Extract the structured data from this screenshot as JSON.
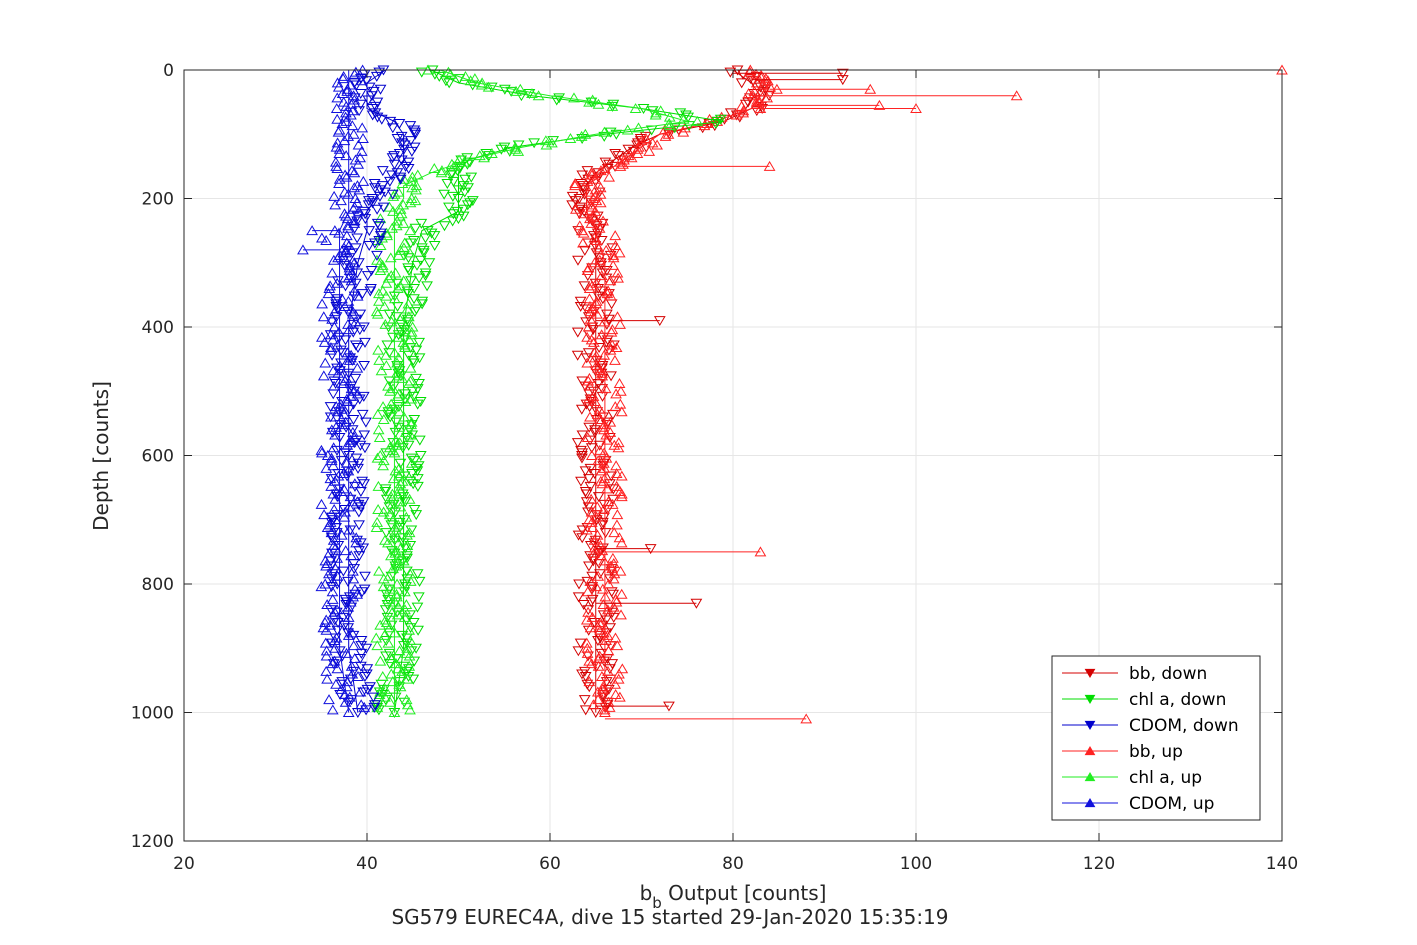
{
  "chart_data": {
    "type": "scatter",
    "title": "",
    "xlabel_main": "b",
    "xlabel_sub": "b",
    "xlabel_rest": " Output [counts]",
    "ylabel": "Depth [counts]",
    "footer": "SG579 EUREC4A, dive 15 started 29-Jan-2020 15:35:19",
    "xlim": [
      20,
      140
    ],
    "ylim": [
      0,
      1200
    ],
    "y_reversed": true,
    "grid": true,
    "legend_position": "bottom-right",
    "xticks": [
      "20",
      "40",
      "60",
      "80",
      "100",
      "120",
      "140"
    ],
    "yticks": [
      "0",
      "200",
      "400",
      "600",
      "800",
      "1000",
      "1200"
    ],
    "series": [
      {
        "name": "bb, down",
        "color": "#d40000",
        "marker": "triangle-down",
        "depth": [
          0,
          20,
          40,
          60,
          80,
          100,
          120,
          140,
          160,
          180,
          200,
          220,
          250,
          300,
          400,
          500,
          600,
          700,
          800,
          900,
          1000
        ],
        "x": [
          80,
          82,
          83,
          82,
          79,
          72,
          69,
          67,
          65,
          64,
          64,
          64,
          65,
          65,
          65,
          65,
          65,
          65,
          65,
          65,
          65
        ]
      },
      {
        "name": "chl a, down",
        "color": "#00dd00",
        "marker": "triangle-down",
        "depth": [
          0,
          20,
          40,
          60,
          80,
          100,
          120,
          140,
          160,
          180,
          200,
          220,
          250,
          300,
          400,
          500,
          600,
          700,
          800,
          900,
          1000
        ],
        "x": [
          47,
          50,
          58,
          70,
          79,
          66,
          56,
          51,
          50,
          50,
          50,
          50,
          46,
          45,
          44,
          44,
          44,
          44,
          44,
          44,
          43
        ]
      },
      {
        "name": "CDOM, down",
        "color": "#0000cc",
        "marker": "triangle-down",
        "depth": [
          0,
          20,
          40,
          60,
          80,
          100,
          120,
          140,
          160,
          180,
          200,
          220,
          250,
          300,
          400,
          500,
          600,
          700,
          800,
          900,
          1000
        ],
        "x": [
          42,
          40,
          40,
          40,
          43,
          44,
          44,
          44,
          43,
          42,
          41,
          40,
          40,
          39,
          38,
          38,
          38,
          38,
          38,
          38,
          39
        ]
      },
      {
        "name": "bb, up",
        "color": "#ff2222",
        "marker": "triangle-up",
        "depth": [
          0,
          20,
          40,
          60,
          80,
          100,
          120,
          140,
          160,
          180,
          200,
          220,
          250,
          300,
          400,
          500,
          600,
          700,
          800,
          900,
          1000
        ],
        "x": [
          83,
          84,
          83,
          82,
          78,
          72,
          70,
          68,
          66,
          64,
          64,
          64,
          65,
          66,
          66,
          66,
          66,
          66,
          66,
          66,
          66
        ]
      },
      {
        "name": "chl a, up",
        "color": "#22ee22",
        "marker": "triangle-up",
        "depth": [
          0,
          20,
          40,
          60,
          80,
          100,
          120,
          140,
          160,
          180,
          200,
          220,
          250,
          300,
          400,
          500,
          600,
          700,
          800,
          900,
          1000
        ],
        "x": [
          48,
          52,
          60,
          70,
          75,
          65,
          57,
          51,
          47,
          44,
          44,
          43,
          43,
          43,
          43,
          43,
          43,
          43,
          43,
          43,
          43
        ]
      },
      {
        "name": "CDOM, up",
        "color": "#1111dd",
        "marker": "triangle-up",
        "depth": [
          0,
          20,
          40,
          60,
          80,
          100,
          120,
          140,
          160,
          180,
          200,
          220,
          250,
          300,
          400,
          500,
          600,
          700,
          800,
          900,
          1000
        ],
        "x": [
          38,
          38,
          38,
          38,
          38,
          38,
          38,
          38,
          38,
          38,
          38,
          38,
          37,
          37,
          37,
          37,
          37,
          37,
          37,
          37,
          38
        ]
      }
    ],
    "outliers": [
      {
        "series": "bb, up",
        "x": 140,
        "y": 0
      },
      {
        "series": "bb, up",
        "x": 111,
        "y": 40
      },
      {
        "series": "bb, up",
        "x": 100,
        "y": 60
      },
      {
        "series": "bb, down",
        "x": 92,
        "y": 5
      },
      {
        "series": "bb, down",
        "x": 92,
        "y": 15
      },
      {
        "series": "bb, up",
        "x": 95,
        "y": 30
      },
      {
        "series": "bb, up",
        "x": 96,
        "y": 55
      },
      {
        "series": "bb, up",
        "x": 84,
        "y": 150
      },
      {
        "series": "bb, up",
        "x": 83,
        "y": 750
      },
      {
        "series": "bb, up",
        "x": 88,
        "y": 1010
      },
      {
        "series": "bb, down",
        "x": 71,
        "y": 745
      },
      {
        "series": "bb, down",
        "x": 76,
        "y": 830
      },
      {
        "series": "bb, down",
        "x": 73,
        "y": 990
      },
      {
        "series": "bb, down",
        "x": 72,
        "y": 390
      },
      {
        "series": "CDOM, up",
        "x": 33,
        "y": 280
      },
      {
        "series": "CDOM, up",
        "x": 34,
        "y": 250
      }
    ]
  }
}
